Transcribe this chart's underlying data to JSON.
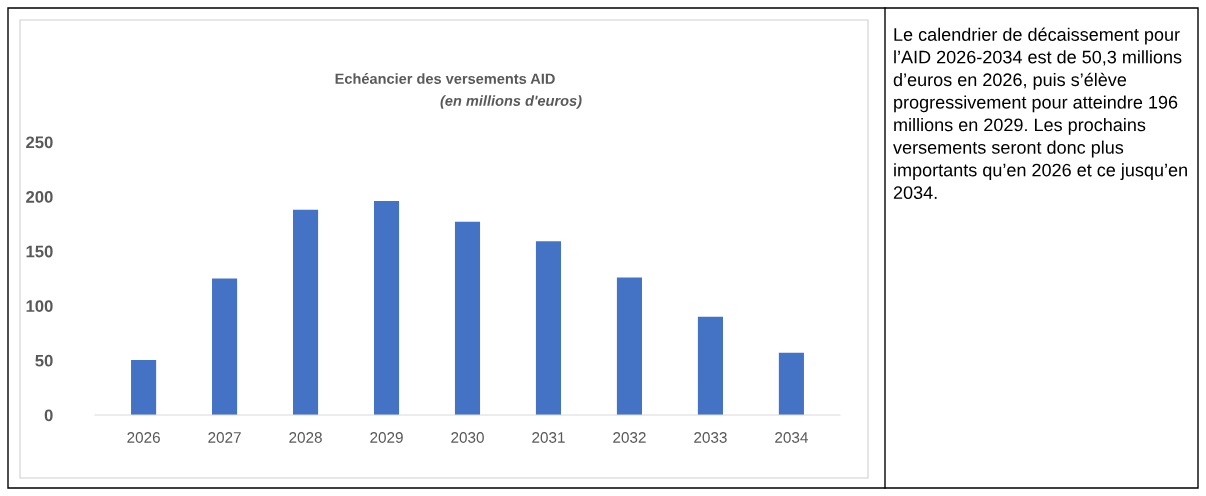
{
  "chart_data": {
    "type": "bar",
    "title": "Echéancier des versements AID",
    "subtitle": "(en millions d'euros)",
    "categories": [
      "2026",
      "2027",
      "2028",
      "2029",
      "2030",
      "2031",
      "2032",
      "2033",
      "2034"
    ],
    "values": [
      50.3,
      125,
      188,
      196,
      177,
      159,
      126,
      90,
      57
    ],
    "color": "#4472c4",
    "ylim": [
      0,
      250
    ],
    "yticks": [
      0,
      50,
      100,
      150,
      200,
      250
    ],
    "grid": false,
    "annotations": [
      "Le calendrier de décaissement pour l’AID 2026-2034 est de 50,3 millions d’euros en 2026, puis s’élève progressivement pour atteindre 196 millions en 2029. Les prochains versements seront donc plus importants qu’en 2026 et ce jusqu’en 2034."
    ]
  }
}
